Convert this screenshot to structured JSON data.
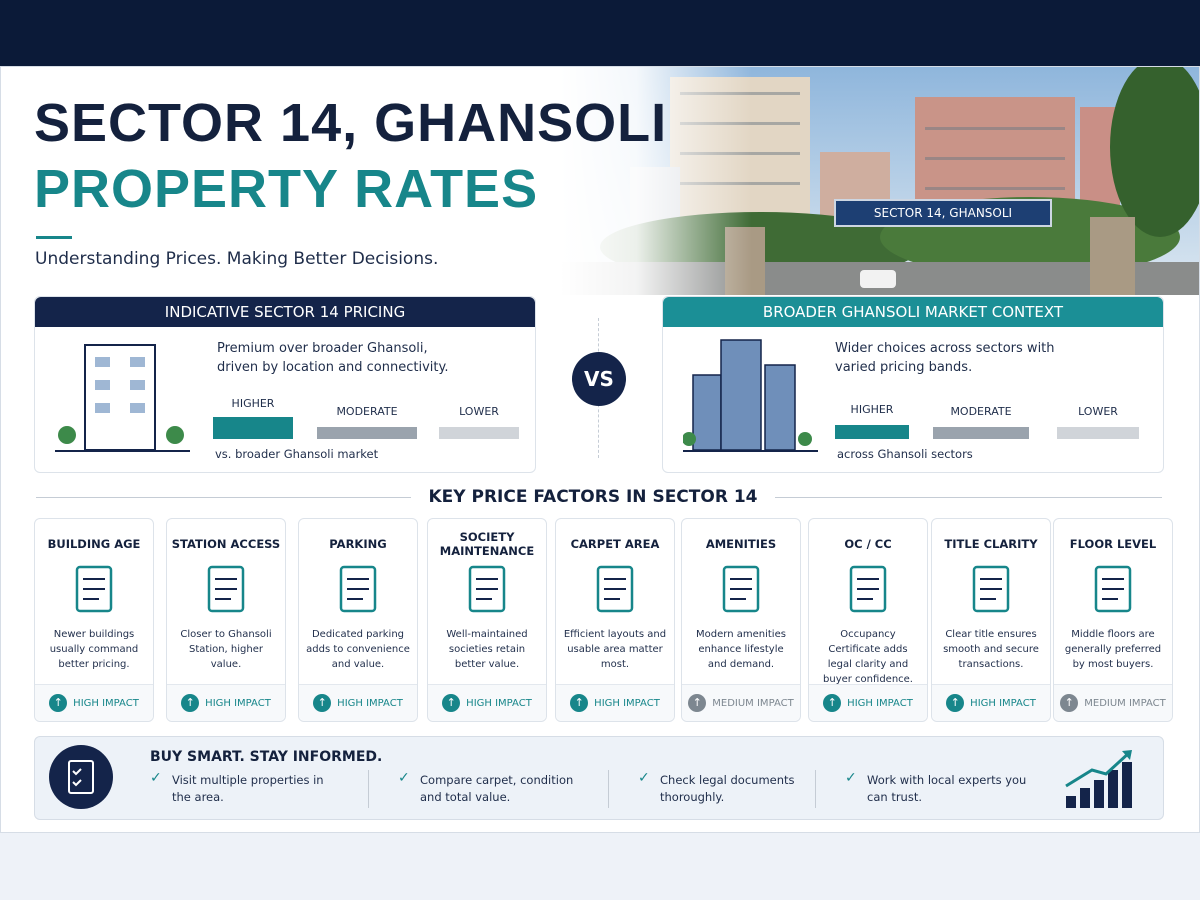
{
  "header": {
    "title_line1": "SECTOR 14, GHANSOLI",
    "title_line2": "PROPERTY RATES",
    "tagline": "Understanding Prices. Making Better Decisions.",
    "photo_sign": "SECTOR 14, GHANSOLI"
  },
  "left_panel": {
    "title": "INDICATIVE SECTOR 14 PRICING",
    "description": "Premium over broader Ghansoli, driven by location and connectivity.",
    "levels": [
      "HIGHER",
      "MODERATE",
      "LOWER"
    ],
    "note": "vs. broader Ghansoli market"
  },
  "vs": "VS",
  "right_panel": {
    "title": "BROADER GHANSOLI MARKET CONTEXT",
    "description": "Wider choices across sectors with varied pricing bands.",
    "levels": [
      "HIGHER",
      "MODERATE",
      "LOWER"
    ],
    "note": "across Ghansoli sectors"
  },
  "factors": {
    "title": "KEY PRICE FACTORS IN SECTOR 14",
    "items": [
      {
        "name": "BUILDING AGE",
        "description": "Newer buildings usually command better pricing.",
        "impact": "HIGH IMPACT",
        "impact_color": "#17868a"
      },
      {
        "name": "STATION ACCESS",
        "description": "Closer to Ghansoli Station, higher value.",
        "impact": "HIGH IMPACT",
        "impact_color": "#17868a"
      },
      {
        "name": "PARKING",
        "description": "Dedicated parking adds to convenience and value.",
        "impact": "HIGH IMPACT",
        "impact_color": "#17868a"
      },
      {
        "name": "SOCIETY MAINTENANCE",
        "description": "Well-maintained societies retain better value.",
        "impact": "HIGH IMPACT",
        "impact_color": "#17868a"
      },
      {
        "name": "CARPET AREA",
        "description": "Efficient layouts and usable area matter most.",
        "impact": "HIGH IMPACT",
        "impact_color": "#17868a"
      },
      {
        "name": "AMENITIES",
        "description": "Modern amenities enhance lifestyle and demand.",
        "impact": "MEDIUM IMPACT",
        "impact_color": "#7d8790"
      },
      {
        "name": "OC / CC",
        "description": "Occupancy Certificate adds legal clarity and buyer confidence.",
        "impact": "HIGH IMPACT",
        "impact_color": "#17868a"
      },
      {
        "name": "TITLE CLARITY",
        "description": "Clear title ensures smooth and secure transactions.",
        "impact": "HIGH IMPACT",
        "impact_color": "#17868a"
      },
      {
        "name": "FLOOR LEVEL",
        "description": "Middle floors are generally preferred by most buyers.",
        "impact": "MEDIUM IMPACT",
        "impact_color": "#7d8790"
      }
    ]
  },
  "footer": {
    "title": "BUY SMART. STAY INFORMED.",
    "tips": [
      "Visit multiple properties in the area.",
      "Compare carpet, condition and total value.",
      "Check legal documents thoroughly.",
      "Work with local experts you can trust."
    ]
  }
}
